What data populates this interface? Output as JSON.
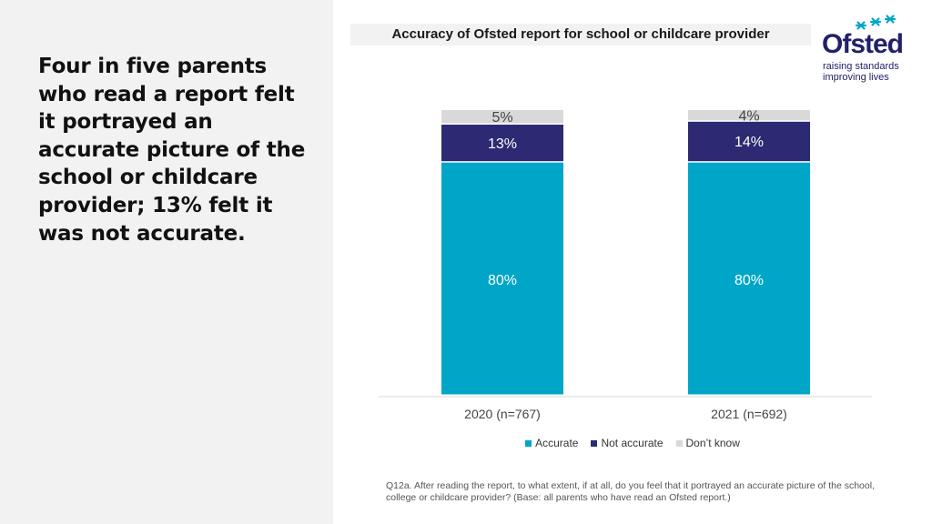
{
  "headline": "Four in five parents who read a report felt it portrayed an accurate picture of the school or childcare provider; 13% felt it was not accurate.",
  "logo": {
    "name": "Ofsted",
    "tagline_1": "raising standards",
    "tagline_2": "improving lives",
    "color": "#22206a",
    "star_color": "#00a6c8"
  },
  "chart_data": {
    "type": "bar",
    "stacked": true,
    "title": "Accuracy of Ofsted report for school or childcare provider",
    "categories": [
      "2020 (n=767)",
      "2021 (n=692)"
    ],
    "series": [
      {
        "name": "Accurate",
        "values": [
          80,
          80
        ],
        "labels": [
          "80%",
          "80%"
        ],
        "color": "#00a6c8"
      },
      {
        "name": "Not accurate",
        "values": [
          13,
          14
        ],
        "labels": [
          "13%",
          "14%"
        ],
        "color": "#2b2a72"
      },
      {
        "name": "Don’t know",
        "values": [
          5,
          4
        ],
        "labels": [
          "5%",
          "4%"
        ],
        "color": "#d9d9d9"
      }
    ],
    "ylim": [
      0,
      98
    ],
    "grid": false,
    "legend": "bottom"
  },
  "footnote": "Q12a. After reading the report, to what extent, if at all, do you feel that it portrayed an accurate picture of the school, college or childcare provider? (Base: all parents who have read an Ofsted report.)"
}
